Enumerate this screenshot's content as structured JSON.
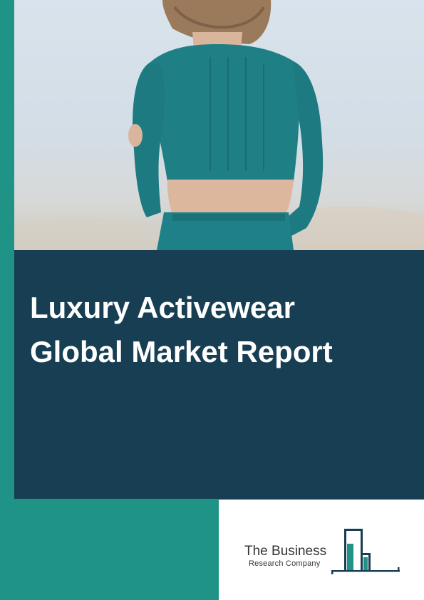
{
  "cover": {
    "title_line1": "Luxury Activewear",
    "title_line2": "Global Market Report"
  },
  "brand": {
    "name": "The Business",
    "subtitle": "Research Company"
  },
  "colors": {
    "teal": "#1f9486",
    "navy": "#173e52",
    "white": "#ffffff"
  }
}
